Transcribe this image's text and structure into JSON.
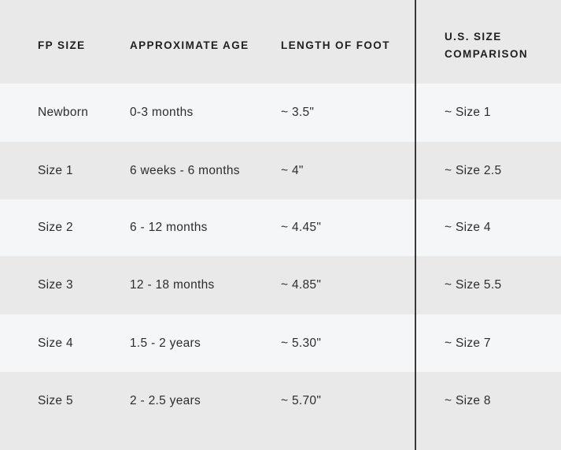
{
  "chart_data": {
    "type": "table",
    "columns": [
      "FP SIZE",
      "APPROXIMATE AGE",
      "LENGTH OF FOOT",
      "U.S. SIZE COMPARISON"
    ],
    "rows": [
      [
        "Newborn",
        "0-3 months",
        "~ 3.5\"",
        "~ Size 1"
      ],
      [
        "Size 1",
        "6 weeks - 6 months",
        "~ 4\"",
        "~ Size 2.5"
      ],
      [
        "Size 2",
        "6 - 12 months",
        "~ 4.45\"",
        "~ Size 4"
      ],
      [
        "Size 3",
        "12 - 18 months",
        "~ 4.85\"",
        "~ Size 5.5"
      ],
      [
        "Size 4",
        "1.5 - 2 years",
        "~ 5.30\"",
        "~ Size 7"
      ],
      [
        "Size 5",
        "2 - 2.5 years",
        "~ 5.70\"",
        "~ Size 8"
      ]
    ],
    "layout": {
      "striped": true,
      "divider_before_column": 3
    }
  },
  "colors": {
    "row_gray": "#e9e9e9",
    "row_light": "#f5f6f7",
    "divider": "#3a3a3a",
    "header_text": "#1f1f1f",
    "body_text": "#2d2d2d"
  }
}
